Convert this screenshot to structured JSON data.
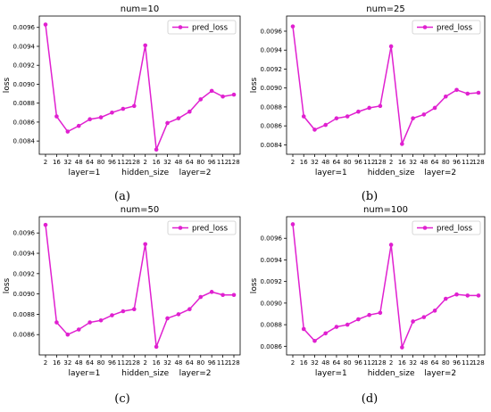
{
  "chart_data": [
    {
      "type": "line",
      "title": "num=10",
      "caption": "(a)",
      "ylabel": "loss",
      "xlabel": "hidden_size",
      "group_labels": [
        "layer=1",
        "layer=2"
      ],
      "categories": [
        "2",
        "16",
        "32",
        "48",
        "64",
        "80",
        "96",
        "112",
        "128",
        "2",
        "16",
        "32",
        "48",
        "64",
        "80",
        "96",
        "112",
        "128"
      ],
      "ylim": [
        0.00826,
        0.00972
      ],
      "yticks": [
        0.0084,
        0.0086,
        0.0088,
        0.009,
        0.0092,
        0.0094,
        0.0096
      ],
      "ytick_labels": [
        "0.0084",
        "0.0086",
        "0.0088",
        "0.0090",
        "0.0092",
        "0.0094",
        "0.0096"
      ],
      "legend": "upper right",
      "color": "#e020d0",
      "series": [
        {
          "name": "pred_loss",
          "values": [
            0.00963,
            0.00866,
            0.0085,
            0.00856,
            0.00863,
            0.00865,
            0.0087,
            0.00874,
            0.00877,
            0.00941,
            0.00831,
            0.00859,
            0.00864,
            0.00871,
            0.00884,
            0.00893,
            0.00887,
            0.00889
          ]
        }
      ]
    },
    {
      "type": "line",
      "title": "num=25",
      "caption": "(b)",
      "ylabel": "loss",
      "xlabel": "hidden_size",
      "group_labels": [
        "layer=1",
        "layer=2"
      ],
      "categories": [
        "2",
        "16",
        "32",
        "48",
        "64",
        "80",
        "96",
        "112",
        "128",
        "2",
        "16",
        "32",
        "48",
        "64",
        "80",
        "96",
        "112",
        "128"
      ],
      "ylim": [
        0.0083,
        0.00976
      ],
      "yticks": [
        0.0084,
        0.0086,
        0.0088,
        0.009,
        0.0092,
        0.0094,
        0.0096
      ],
      "ytick_labels": [
        "0.0084",
        "0.0086",
        "0.0088",
        "0.0090",
        "0.0092",
        "0.0094",
        "0.0096"
      ],
      "legend": "upper right",
      "color": "#e020d0",
      "series": [
        {
          "name": "pred_loss",
          "values": [
            0.00965,
            0.0087,
            0.00856,
            0.00861,
            0.00868,
            0.0087,
            0.00875,
            0.00879,
            0.00881,
            0.00944,
            0.00841,
            0.00868,
            0.00872,
            0.00879,
            0.00891,
            0.00898,
            0.00894,
            0.00895
          ]
        }
      ]
    },
    {
      "type": "line",
      "title": "num=50",
      "caption": "(c)",
      "ylabel": "loss",
      "xlabel": "hidden_size",
      "group_labels": [
        "layer=1",
        "layer=2"
      ],
      "categories": [
        "2",
        "16",
        "32",
        "48",
        "64",
        "80",
        "96",
        "112",
        "128",
        "2",
        "16",
        "32",
        "48",
        "64",
        "80",
        "96",
        "112",
        "128"
      ],
      "ylim": [
        0.0084,
        0.00976
      ],
      "yticks": [
        0.0086,
        0.0088,
        0.009,
        0.0092,
        0.0094,
        0.0096
      ],
      "ytick_labels": [
        "0.0086",
        "0.0088",
        "0.0090",
        "0.0092",
        "0.0094",
        "0.0096"
      ],
      "legend": "upper right",
      "color": "#e020d0",
      "series": [
        {
          "name": "pred_loss",
          "values": [
            0.00968,
            0.00872,
            0.0086,
            0.00865,
            0.00872,
            0.00874,
            0.00879,
            0.00883,
            0.00885,
            0.00949,
            0.00848,
            0.00876,
            0.0088,
            0.00885,
            0.00897,
            0.00902,
            0.00899,
            0.00899
          ]
        }
      ]
    },
    {
      "type": "line",
      "title": "num=100",
      "caption": "(d)",
      "ylabel": "loss",
      "xlabel": "hidden_size",
      "group_labels": [
        "layer=1",
        "layer=2"
      ],
      "categories": [
        "2",
        "16",
        "32",
        "48",
        "64",
        "80",
        "96",
        "112",
        "128",
        "2",
        "16",
        "32",
        "48",
        "64",
        "80",
        "96",
        "112",
        "128"
      ],
      "ylim": [
        0.00852,
        0.0098
      ],
      "yticks": [
        0.0086,
        0.0088,
        0.009,
        0.0092,
        0.0094,
        0.0096
      ],
      "ytick_labels": [
        "0.0086",
        "0.0088",
        "0.0090",
        "0.0092",
        "0.0094",
        "0.0096"
      ],
      "legend": "upper right",
      "color": "#e020d0",
      "series": [
        {
          "name": "pred_loss",
          "values": [
            0.00973,
            0.00876,
            0.00865,
            0.00872,
            0.00878,
            0.0088,
            0.00885,
            0.00889,
            0.00891,
            0.00954,
            0.00859,
            0.00883,
            0.00887,
            0.00893,
            0.00904,
            0.00908,
            0.00907,
            0.00907
          ]
        }
      ]
    }
  ]
}
